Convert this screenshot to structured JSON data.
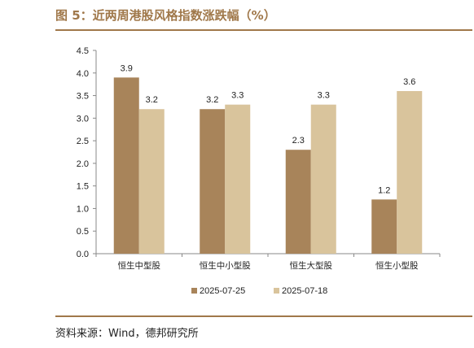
{
  "figure_title": "图 5：近两周港股风格指数涨跌幅（%）",
  "source_note": "资料来源：Wind，德邦研究所",
  "chart_data": {
    "type": "bar",
    "categories": [
      "恒生中型股",
      "恒生中小型股",
      "恒生大型股",
      "恒生小型股"
    ],
    "series": [
      {
        "name": "2025-07-25",
        "values": [
          3.9,
          3.2,
          2.3,
          1.2
        ],
        "color": "#a8845a"
      },
      {
        "name": "2025-07-18",
        "values": [
          3.2,
          3.3,
          3.3,
          3.6
        ],
        "color": "#d9c49c"
      }
    ],
    "data_labels": [
      [
        "3.9",
        "3.2",
        "2.3",
        "1.2"
      ],
      [
        "3.2",
        "3.3",
        "3.3",
        "3.6"
      ]
    ],
    "ylim": [
      0,
      4.5
    ],
    "yticks": [
      "0.0",
      "0.5",
      "1.0",
      "1.5",
      "2.0",
      "2.5",
      "3.0",
      "3.5",
      "4.0",
      "4.5"
    ],
    "legend_position": "bottom",
    "grid": false
  }
}
